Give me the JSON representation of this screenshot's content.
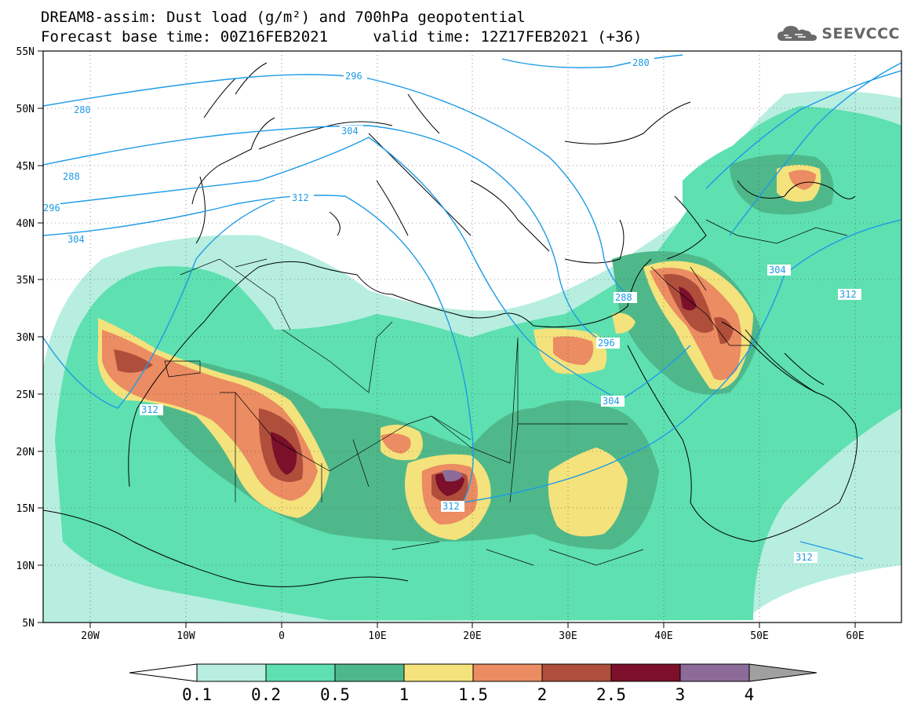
{
  "header": {
    "title_line1": "DREAM8-assim: Dust load (g/m²) and 700hPa geopotential",
    "title_line2": "Forecast base time: 00Z16FEB2021     valid time: 12Z17FEB2021 (+36)",
    "logo_text": "SEEVCCC"
  },
  "map": {
    "lon_range": [
      -25,
      65
    ],
    "lat_range": [
      5,
      55
    ],
    "lon_ticks": [
      "20W",
      "10W",
      "0",
      "10E",
      "20E",
      "30E",
      "40E",
      "50E",
      "60E"
    ],
    "lat_ticks": [
      "55N",
      "50N",
      "45N",
      "40N",
      "35N",
      "30N",
      "25N",
      "20N",
      "15N",
      "10N",
      "5N"
    ],
    "contour_color": "#1e9be6",
    "contour_labels": [
      "280",
      "280",
      "288",
      "288",
      "296",
      "296",
      "296",
      "304",
      "304",
      "304",
      "304",
      "312",
      "312",
      "312",
      "312",
      "312"
    ]
  },
  "colorbar": {
    "levels": [
      "0.1",
      "0.2",
      "0.5",
      "1",
      "1.5",
      "2",
      "2.5",
      "3",
      "4"
    ],
    "colors": [
      "#b7eedf",
      "#5ee0b1",
      "#4fb88a",
      "#f4e27c",
      "#eb8c62",
      "#b04e3c",
      "#7c0f29",
      "#8c6b99",
      "#a0a0a0"
    ]
  }
}
